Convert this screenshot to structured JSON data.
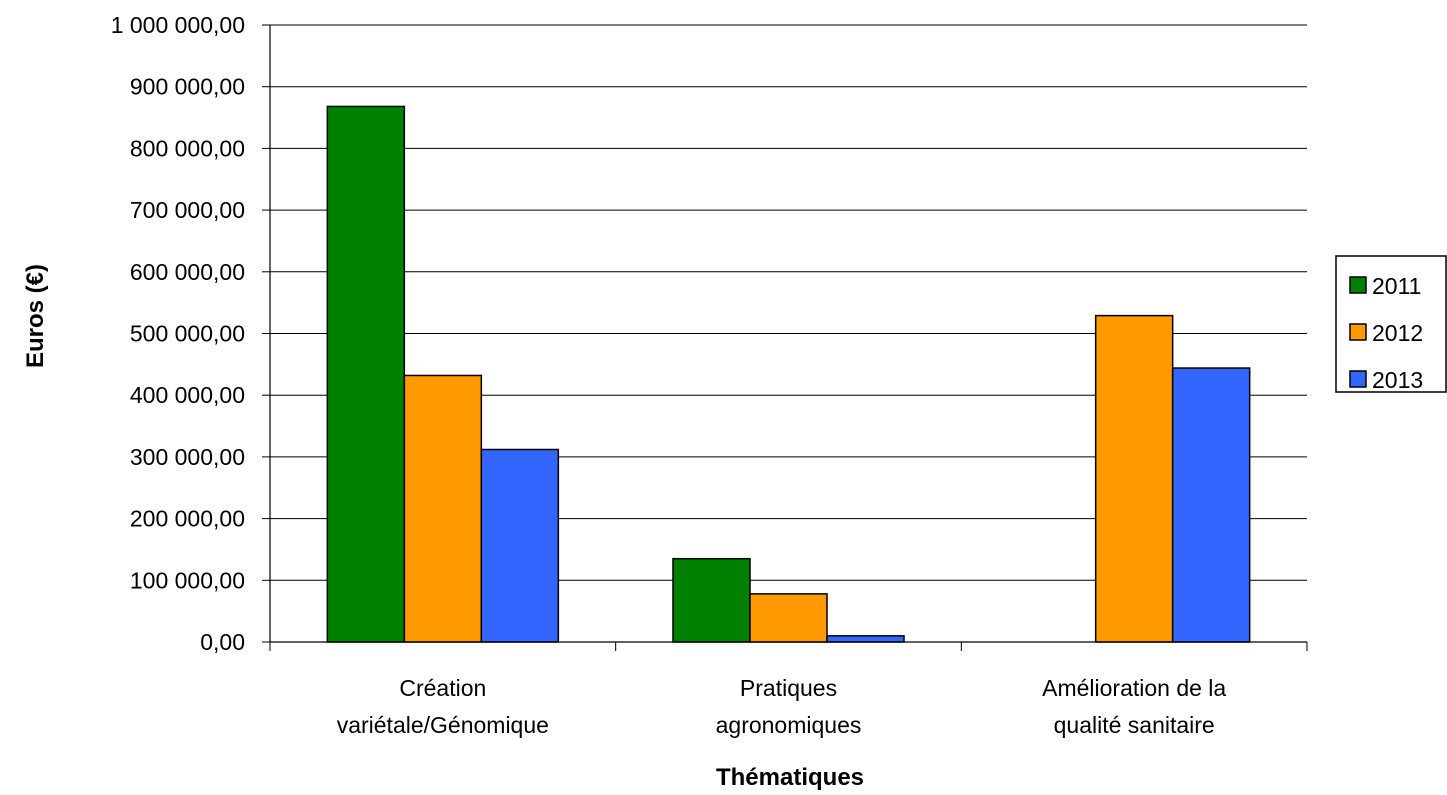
{
  "chart_data": {
    "type": "bar",
    "title": "",
    "xlabel": "Thématiques",
    "ylabel": "Euros (€)",
    "ylim": [
      0,
      1000000
    ],
    "y_tick_step": 100000,
    "y_ticks": [
      "0,00",
      "100 000,00",
      "200 000,00",
      "300 000,00",
      "400 000,00",
      "500 000,00",
      "600 000,00",
      "700 000,00",
      "800 000,00",
      "900 000,00",
      "1 000 000,00"
    ],
    "categories": [
      [
        "Création",
        "variétale/Génomique"
      ],
      [
        "Pratiques",
        "agronomiques"
      ],
      [
        "Amélioration de la",
        "qualité sanitaire"
      ]
    ],
    "series": [
      {
        "name": "2011",
        "color": "#008000",
        "values": [
          868000,
          135000,
          0
        ]
      },
      {
        "name": "2012",
        "color": "#ff9900",
        "values": [
          432000,
          78000,
          529000
        ]
      },
      {
        "name": "2013",
        "color": "#3366ff",
        "values": [
          312000,
          10000,
          444000
        ]
      }
    ],
    "grid": true,
    "legend_position": "right"
  }
}
